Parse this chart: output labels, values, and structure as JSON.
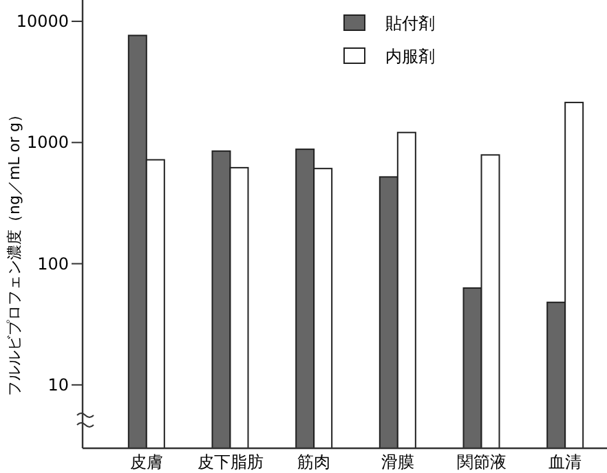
{
  "chart_data": {
    "type": "bar",
    "ylabel": "フルルビプロフェン濃度（ng／mL or g）",
    "categories": [
      "皮膚",
      "皮下脂肪",
      "筋肉",
      "滑膜",
      "関節液",
      "血清"
    ],
    "series": [
      {
        "name": "貼付剤",
        "color": "#666666",
        "values": [
          7650,
          850,
          880,
          520,
          63,
          48
        ]
      },
      {
        "name": "内服剤",
        "color": "#ffffff",
        "values": [
          720,
          620,
          610,
          1210,
          790,
          2140
        ]
      }
    ],
    "ylim": [
      3,
      15000
    ],
    "yticks": [
      10,
      100,
      1000,
      10000
    ],
    "log": "y",
    "legend": "top right"
  }
}
